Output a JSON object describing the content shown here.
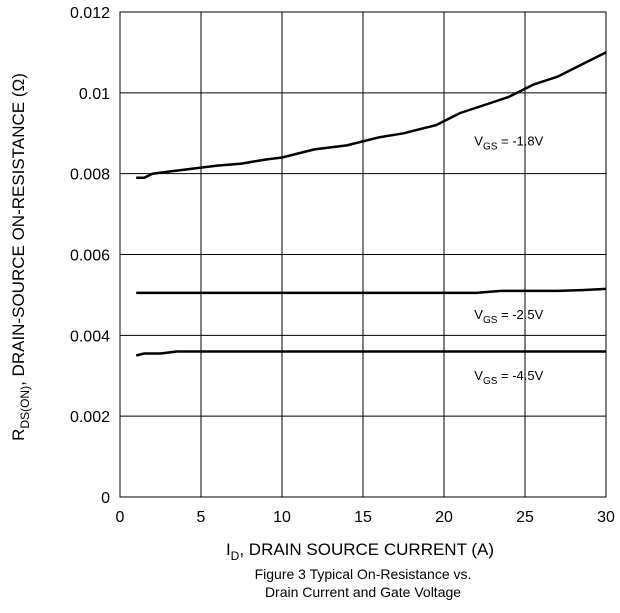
{
  "chart_data": {
    "type": "line",
    "xlabel": {
      "main": "I",
      "sub": "D",
      "rest": ", DRAIN SOURCE CURRENT (A)"
    },
    "ylabel": {
      "main": "R",
      "sub": "DS(ON)",
      "rest": ", DRAIN-SOURCE ON-RESISTANCE (Ω)"
    },
    "xlim": [
      0,
      30
    ],
    "ylim": [
      0,
      0.012
    ],
    "x_ticks": [
      0,
      5,
      10,
      15,
      20,
      25,
      30
    ],
    "x_tick_labels": [
      "0",
      "5",
      "10",
      "15",
      "20",
      "25",
      "30"
    ],
    "y_ticks": [
      0,
      0.002,
      0.004,
      0.006,
      0.008,
      0.01,
      0.012
    ],
    "y_tick_labels": [
      "0",
      "0.002",
      "0.004",
      "0.006",
      "0.008",
      "0.01",
      "0.012"
    ],
    "grid": true,
    "caption_lines": [
      "Figure 3 Typical On-Resistance vs.",
      "Drain Current and Gate Voltage"
    ],
    "series": [
      {
        "label": {
          "main": "V",
          "sub": "GS",
          "rest": " = -1.8V"
        },
        "label_at": [
          24,
          0.0087
        ],
        "x": [
          1,
          1.5,
          2,
          3,
          4,
          5,
          6,
          7.5,
          9,
          10,
          12,
          14,
          16,
          17.5,
          18.5,
          19.5,
          20,
          21,
          22.5,
          24,
          25.5,
          27,
          28.5,
          30
        ],
        "y": [
          0.0079,
          0.0079,
          0.008,
          0.00805,
          0.0081,
          0.00815,
          0.0082,
          0.00825,
          0.00835,
          0.0084,
          0.0086,
          0.0087,
          0.0089,
          0.009,
          0.0091,
          0.0092,
          0.0093,
          0.0095,
          0.0097,
          0.0099,
          0.0102,
          0.0104,
          0.0107,
          0.011
        ]
      },
      {
        "label": {
          "main": "V",
          "sub": "GS",
          "rest": " = -2.5V"
        },
        "label_at": [
          24,
          0.0044
        ],
        "x": [
          1,
          5,
          10,
          15,
          20,
          22,
          23.5,
          25,
          27,
          28.5,
          30
        ],
        "y": [
          0.00505,
          0.00505,
          0.00505,
          0.00505,
          0.00505,
          0.00505,
          0.0051,
          0.0051,
          0.0051,
          0.00512,
          0.00515
        ]
      },
      {
        "label": {
          "main": "V",
          "sub": "GS",
          "rest": " = -4.5V"
        },
        "label_at": [
          24,
          0.0029
        ],
        "x": [
          1,
          1.5,
          2.5,
          3.5,
          5,
          10,
          15,
          20,
          25,
          30
        ],
        "y": [
          0.0035,
          0.00355,
          0.00355,
          0.0036,
          0.0036,
          0.0036,
          0.0036,
          0.0036,
          0.0036,
          0.0036
        ]
      }
    ]
  }
}
